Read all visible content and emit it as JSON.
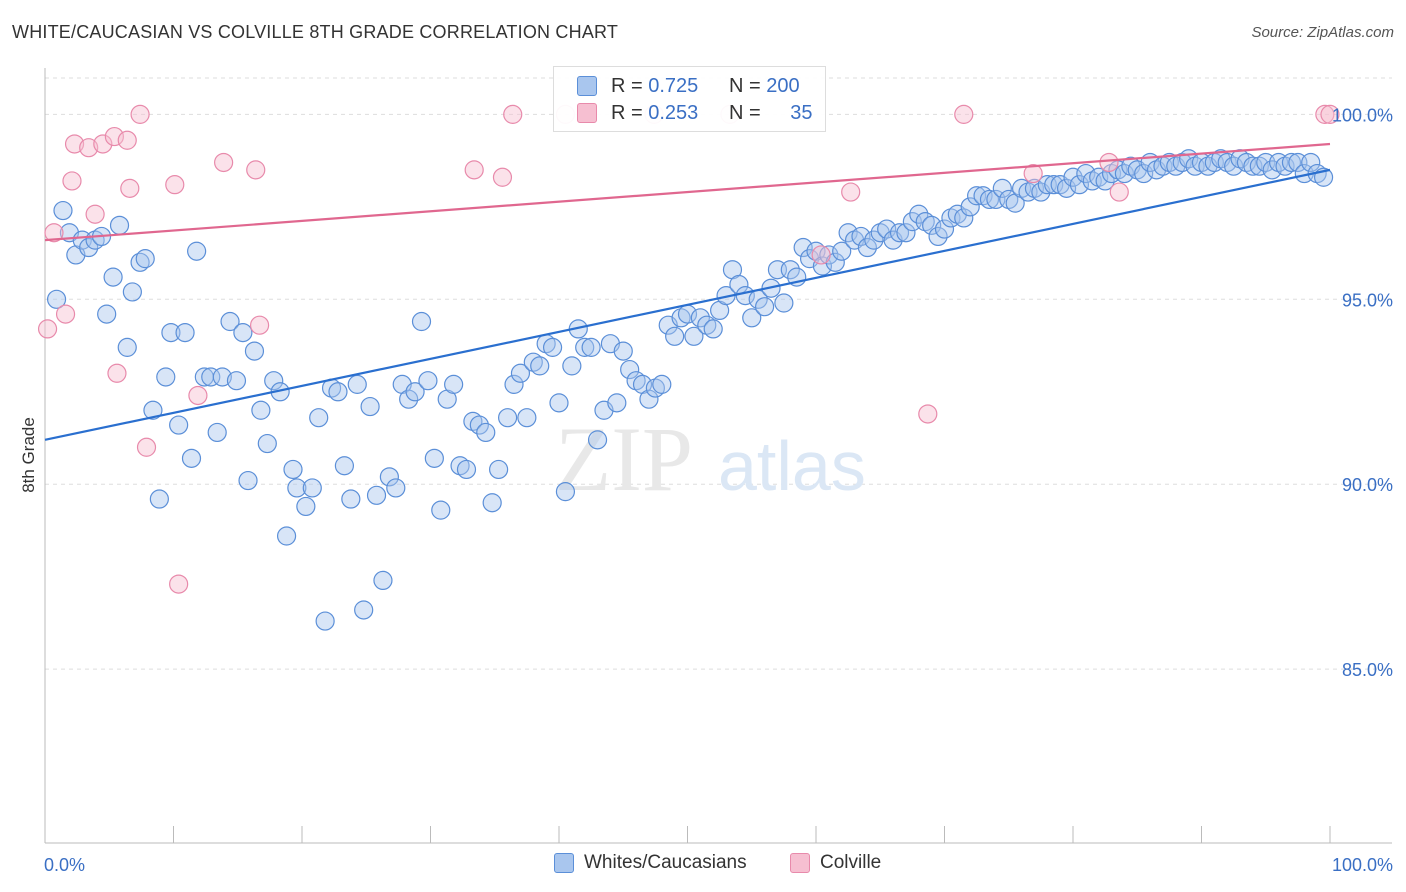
{
  "header": {
    "title": "WHITE/CAUCASIAN VS COLVILLE 8TH GRADE CORRELATION CHART",
    "source": "Source: ZipAtlas.com"
  },
  "watermark": {
    "zip": "ZIP",
    "atlas": "atlas"
  },
  "legend": {
    "rows": [
      {
        "r_label": "R = ",
        "r_value": "0.725",
        "n_label": "N = ",
        "n_value": "200"
      },
      {
        "r_label": "R = ",
        "r_value": "0.253",
        "n_label": "N = ",
        "n_value": "35"
      }
    ]
  },
  "bottom_legend": {
    "series1": "Whites/Caucasians",
    "series2": "Colville"
  },
  "colors": {
    "blue_fill": "#a9c6ee",
    "blue_stroke": "#5b8fd8",
    "blue_line": "#2a6fcf",
    "pink_fill": "#f6bfd1",
    "pink_stroke": "#e88aab",
    "pink_line": "#e0678f",
    "tick_label": "#3a6fc4",
    "grid": "#dddddd"
  },
  "chart_data": {
    "type": "scatter",
    "title": "WHITE/CAUCASIAN VS COLVILLE 8TH GRADE CORRELATION CHART",
    "xlabel": "",
    "ylabel": "8th Grade",
    "xlim": [
      0,
      100
    ],
    "ylim": [
      80.3,
      101.2
    ],
    "x_tick_labels": [
      "0.0%",
      "100.0%"
    ],
    "y_ticks": [
      85,
      90,
      95,
      100
    ],
    "y_tick_labels": [
      "85.0%",
      "90.0%",
      "95.0%",
      "100.0%"
    ],
    "grid": true,
    "series": [
      {
        "name": "Whites/Caucasians",
        "trend": {
          "x": [
            0,
            100
          ],
          "y": [
            91.2,
            98.5
          ]
        },
        "points": [
          [
            0.9,
            95.0
          ],
          [
            1.4,
            97.4
          ],
          [
            1.9,
            96.8
          ],
          [
            2.4,
            96.2
          ],
          [
            2.9,
            96.6
          ],
          [
            3.4,
            96.4
          ],
          [
            3.9,
            96.6
          ],
          [
            4.4,
            96.7
          ],
          [
            4.8,
            94.6
          ],
          [
            5.3,
            95.6
          ],
          [
            5.8,
            97.0
          ],
          [
            6.4,
            93.7
          ],
          [
            6.8,
            95.2
          ],
          [
            7.4,
            96.0
          ],
          [
            7.8,
            96.1
          ],
          [
            8.4,
            92.0
          ],
          [
            8.9,
            89.6
          ],
          [
            9.4,
            92.9
          ],
          [
            9.8,
            94.1
          ],
          [
            10.4,
            91.6
          ],
          [
            10.9,
            94.1
          ],
          [
            11.4,
            90.7
          ],
          [
            11.8,
            96.3
          ],
          [
            12.4,
            92.9
          ],
          [
            12.9,
            92.9
          ],
          [
            13.4,
            91.4
          ],
          [
            13.8,
            92.9
          ],
          [
            14.4,
            94.4
          ],
          [
            14.9,
            92.8
          ],
          [
            15.4,
            94.1
          ],
          [
            15.8,
            90.1
          ],
          [
            16.3,
            93.6
          ],
          [
            16.8,
            92.0
          ],
          [
            17.3,
            91.1
          ],
          [
            17.8,
            92.8
          ],
          [
            18.3,
            92.5
          ],
          [
            18.8,
            88.6
          ],
          [
            19.3,
            90.4
          ],
          [
            19.6,
            89.9
          ],
          [
            20.3,
            89.4
          ],
          [
            20.8,
            89.9
          ],
          [
            21.3,
            91.8
          ],
          [
            21.8,
            86.3
          ],
          [
            22.3,
            92.6
          ],
          [
            22.8,
            92.5
          ],
          [
            23.3,
            90.5
          ],
          [
            23.8,
            89.6
          ],
          [
            24.3,
            92.7
          ],
          [
            24.8,
            86.6
          ],
          [
            25.3,
            92.1
          ],
          [
            25.8,
            89.7
          ],
          [
            26.3,
            87.4
          ],
          [
            26.8,
            90.2
          ],
          [
            27.3,
            89.9
          ],
          [
            27.8,
            92.7
          ],
          [
            28.3,
            92.3
          ],
          [
            28.8,
            92.5
          ],
          [
            29.3,
            94.4
          ],
          [
            29.8,
            92.8
          ],
          [
            30.3,
            90.7
          ],
          [
            30.8,
            89.3
          ],
          [
            31.3,
            92.3
          ],
          [
            31.8,
            92.7
          ],
          [
            32.3,
            90.5
          ],
          [
            32.8,
            90.4
          ],
          [
            33.3,
            91.7
          ],
          [
            33.8,
            91.6
          ],
          [
            34.3,
            91.4
          ],
          [
            34.8,
            89.5
          ],
          [
            35.3,
            90.4
          ],
          [
            36.0,
            91.8
          ],
          [
            36.5,
            92.7
          ],
          [
            37.0,
            93.0
          ],
          [
            37.5,
            91.8
          ],
          [
            38.0,
            93.3
          ],
          [
            38.5,
            93.2
          ],
          [
            39.0,
            93.8
          ],
          [
            39.5,
            93.7
          ],
          [
            40.0,
            92.2
          ],
          [
            40.5,
            89.8
          ],
          [
            41.0,
            93.2
          ],
          [
            41.5,
            94.2
          ],
          [
            42.0,
            93.7
          ],
          [
            42.5,
            93.7
          ],
          [
            43.0,
            91.2
          ],
          [
            43.5,
            92.0
          ],
          [
            44.0,
            93.8
          ],
          [
            44.5,
            92.2
          ],
          [
            45.0,
            93.6
          ],
          [
            45.5,
            93.1
          ],
          [
            46.0,
            92.8
          ],
          [
            46.5,
            92.7
          ],
          [
            47.0,
            92.3
          ],
          [
            47.5,
            92.6
          ],
          [
            48.0,
            92.7
          ],
          [
            48.5,
            94.3
          ],
          [
            49.0,
            94.0
          ],
          [
            49.5,
            94.5
          ],
          [
            50.0,
            94.6
          ],
          [
            50.5,
            94.0
          ],
          [
            51.0,
            94.5
          ],
          [
            51.5,
            94.3
          ],
          [
            52.0,
            94.2
          ],
          [
            52.5,
            94.7
          ],
          [
            53.0,
            95.1
          ],
          [
            53.5,
            95.8
          ],
          [
            54.0,
            95.4
          ],
          [
            54.5,
            95.1
          ],
          [
            55.0,
            94.5
          ],
          [
            55.5,
            95.0
          ],
          [
            56.0,
            94.8
          ],
          [
            56.5,
            95.3
          ],
          [
            57.0,
            95.8
          ],
          [
            57.5,
            94.9
          ],
          [
            58.0,
            95.8
          ],
          [
            58.5,
            95.6
          ],
          [
            59.0,
            96.4
          ],
          [
            59.5,
            96.1
          ],
          [
            60.0,
            96.3
          ],
          [
            60.5,
            95.9
          ],
          [
            61.0,
            96.2
          ],
          [
            61.5,
            96.0
          ],
          [
            62.0,
            96.3
          ],
          [
            62.5,
            96.8
          ],
          [
            63.0,
            96.6
          ],
          [
            63.5,
            96.7
          ],
          [
            64.0,
            96.4
          ],
          [
            64.5,
            96.6
          ],
          [
            65.0,
            96.8
          ],
          [
            65.5,
            96.9
          ],
          [
            66.0,
            96.6
          ],
          [
            66.5,
            96.8
          ],
          [
            67.0,
            96.8
          ],
          [
            67.5,
            97.1
          ],
          [
            68.0,
            97.3
          ],
          [
            68.5,
            97.1
          ],
          [
            69.0,
            97.0
          ],
          [
            69.5,
            96.7
          ],
          [
            70.0,
            96.9
          ],
          [
            70.5,
            97.2
          ],
          [
            71.0,
            97.3
          ],
          [
            71.5,
            97.2
          ],
          [
            72.0,
            97.5
          ],
          [
            72.5,
            97.8
          ],
          [
            73.0,
            97.8
          ],
          [
            73.5,
            97.7
          ],
          [
            74.0,
            97.7
          ],
          [
            74.5,
            98.0
          ],
          [
            75.0,
            97.7
          ],
          [
            75.5,
            97.6
          ],
          [
            76.0,
            98.0
          ],
          [
            76.5,
            97.9
          ],
          [
            77.0,
            98.0
          ],
          [
            77.5,
            97.9
          ],
          [
            78.0,
            98.1
          ],
          [
            78.5,
            98.1
          ],
          [
            79.0,
            98.1
          ],
          [
            79.5,
            98.0
          ],
          [
            80.0,
            98.3
          ],
          [
            80.5,
            98.1
          ],
          [
            81.0,
            98.4
          ],
          [
            81.5,
            98.2
          ],
          [
            82.0,
            98.3
          ],
          [
            82.5,
            98.2
          ],
          [
            83.0,
            98.4
          ],
          [
            83.5,
            98.5
          ],
          [
            84.0,
            98.4
          ],
          [
            84.5,
            98.6
          ],
          [
            85.0,
            98.5
          ],
          [
            85.5,
            98.4
          ],
          [
            86.0,
            98.7
          ],
          [
            86.5,
            98.5
          ],
          [
            87.0,
            98.6
          ],
          [
            87.5,
            98.7
          ],
          [
            88.0,
            98.6
          ],
          [
            88.5,
            98.7
          ],
          [
            89.0,
            98.8
          ],
          [
            89.5,
            98.6
          ],
          [
            90.0,
            98.7
          ],
          [
            90.5,
            98.6
          ],
          [
            91.0,
            98.7
          ],
          [
            91.5,
            98.8
          ],
          [
            92.0,
            98.7
          ],
          [
            92.5,
            98.6
          ],
          [
            93.0,
            98.8
          ],
          [
            93.5,
            98.7
          ],
          [
            94.0,
            98.6
          ],
          [
            94.5,
            98.6
          ],
          [
            95.0,
            98.7
          ],
          [
            95.5,
            98.5
          ],
          [
            96.0,
            98.7
          ],
          [
            96.5,
            98.6
          ],
          [
            97.0,
            98.7
          ],
          [
            97.5,
            98.7
          ],
          [
            98.0,
            98.4
          ],
          [
            98.5,
            98.7
          ],
          [
            99.0,
            98.4
          ],
          [
            99.5,
            98.3
          ]
        ]
      },
      {
        "name": "Colville",
        "trend": {
          "x": [
            0,
            100
          ],
          "y": [
            96.6,
            99.2
          ]
        },
        "points": [
          [
            0.2,
            94.2
          ],
          [
            0.7,
            96.8
          ],
          [
            1.6,
            94.6
          ],
          [
            2.1,
            98.2
          ],
          [
            2.3,
            99.2
          ],
          [
            3.4,
            99.1
          ],
          [
            3.9,
            97.3
          ],
          [
            4.5,
            99.2
          ],
          [
            5.4,
            99.4
          ],
          [
            5.6,
            93.0
          ],
          [
            6.4,
            99.3
          ],
          [
            6.6,
            98.0
          ],
          [
            7.4,
            100.0
          ],
          [
            7.9,
            91.0
          ],
          [
            10.1,
            98.1
          ],
          [
            10.4,
            87.3
          ],
          [
            11.9,
            92.4
          ],
          [
            13.9,
            98.7
          ],
          [
            16.4,
            98.5
          ],
          [
            16.7,
            94.3
          ],
          [
            33.4,
            98.5
          ],
          [
            35.6,
            98.3
          ],
          [
            36.4,
            100.0
          ],
          [
            40.5,
            100.0
          ],
          [
            47.4,
            100.0
          ],
          [
            53.3,
            100.0
          ],
          [
            60.4,
            96.2
          ],
          [
            62.7,
            97.9
          ],
          [
            68.7,
            91.9
          ],
          [
            71.5,
            100.0
          ],
          [
            76.9,
            98.4
          ],
          [
            82.8,
            98.7
          ],
          [
            83.6,
            97.9
          ],
          [
            99.6,
            100.0
          ],
          [
            100.0,
            100.0
          ]
        ]
      }
    ]
  }
}
